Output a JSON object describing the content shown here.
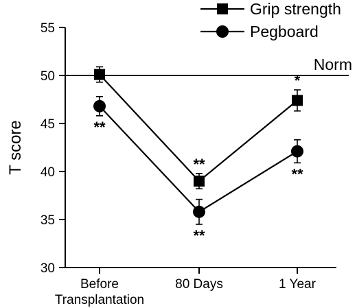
{
  "chart_data": {
    "type": "line",
    "ylabel": "T score",
    "ylim": [
      30,
      55
    ],
    "yticks": [
      30,
      35,
      40,
      45,
      50,
      55
    ],
    "categories": [
      "Before\nTransplantation",
      "80 Days",
      "1 Year"
    ],
    "reference_line": {
      "value": 50,
      "label": "Norm"
    },
    "legend_position": "top-right",
    "series": [
      {
        "name": "Grip strength",
        "marker": "square",
        "values": [
          50.1,
          39.0,
          47.4
        ],
        "error": [
          0.8,
          0.8,
          1.1
        ],
        "annotations": [
          "",
          "**",
          "*"
        ]
      },
      {
        "name": "Pegboard",
        "marker": "circle",
        "values": [
          46.8,
          35.8,
          42.1
        ],
        "error": [
          1.0,
          1.3,
          1.2
        ],
        "annotations": [
          "**",
          "**",
          "**"
        ]
      }
    ]
  }
}
